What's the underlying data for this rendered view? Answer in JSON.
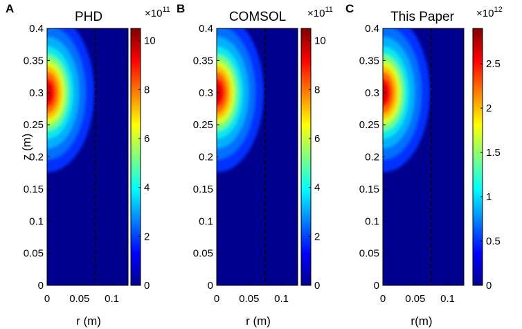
{
  "chart_data": [
    {
      "type": "heatmap",
      "panel_letter": "A",
      "title": "PHD",
      "xlabel": "r (m)",
      "ylabel": "z (m)",
      "xlim": [
        0,
        0.125
      ],
      "ylim": [
        0,
        0.4
      ],
      "x_ticks": [
        "0",
        "0.05",
        "0.1"
      ],
      "y_ticks": [
        "0",
        "0.05",
        "0.1",
        "0.15",
        "0.2",
        "0.25",
        "0.3",
        "0.35",
        "0.4"
      ],
      "colorbar": {
        "min": 0,
        "max": 10.5,
        "ticks": [
          "0",
          "2",
          "4",
          "6",
          "8",
          "10"
        ],
        "multiplier": "×10",
        "exponent": "11"
      },
      "peak": {
        "r": 0.0,
        "z": 0.3,
        "value": 10.5
      },
      "dashed_line_r": 0.075,
      "colormap": "jet"
    },
    {
      "type": "heatmap",
      "panel_letter": "B",
      "title": "COMSOL",
      "xlabel": "r (m)",
      "ylabel": "",
      "xlim": [
        0,
        0.125
      ],
      "ylim": [
        0,
        0.4
      ],
      "x_ticks": [
        "0",
        "0.05",
        "0.1"
      ],
      "y_ticks": [
        "0",
        "0.05",
        "0.1",
        "0.15",
        "0.2",
        "0.25",
        "0.3",
        "0.35",
        "0.4"
      ],
      "colorbar": {
        "min": 0,
        "max": 10.5,
        "ticks": [
          "0",
          "2",
          "4",
          "6",
          "8",
          "10"
        ],
        "multiplier": "×10",
        "exponent": "11"
      },
      "peak": {
        "r": 0.0,
        "z": 0.3,
        "value": 10.5
      },
      "dashed_line_r": 0.075,
      "colormap": "jet"
    },
    {
      "type": "heatmap",
      "panel_letter": "C",
      "title": "This Paper",
      "xlabel": "r(m)",
      "ylabel": "",
      "xlim": [
        0,
        0.125
      ],
      "ylim": [
        0,
        0.4
      ],
      "x_ticks": [
        "0",
        "0.05",
        "0.1"
      ],
      "y_ticks": [
        "0",
        "0.05",
        "0.1",
        "0.15",
        "0.2",
        "0.25",
        "0.3",
        "0.35",
        "0.4"
      ],
      "colorbar": {
        "min": 0,
        "max": 2.9,
        "ticks": [
          "0",
          "0.5",
          "1",
          "1.5",
          "2",
          "2.5"
        ],
        "multiplier": "×10",
        "exponent": "12"
      },
      "peak": {
        "r": 0.0,
        "z": 0.3,
        "value": 2.9
      },
      "dashed_line_r": 0.075,
      "colormap": "jet"
    }
  ]
}
